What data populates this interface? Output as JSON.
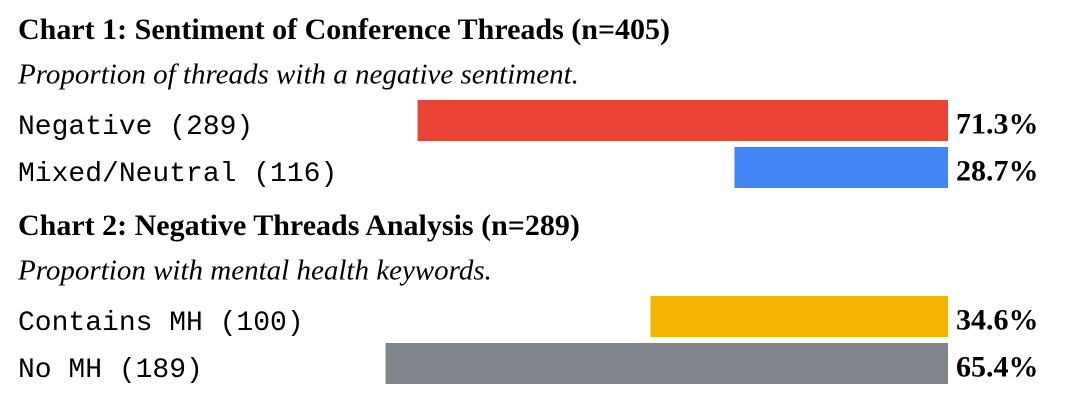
{
  "chart_data": [
    {
      "type": "bar",
      "title": "Chart 1: Sentiment of Conference Threads (n=405)",
      "subtitle": "Proportion of threads with a negative sentiment.",
      "categories": [
        "Negative (289)",
        "Mixed/Neutral (116)"
      ],
      "series": [
        {
          "colors": [
            "#ea4335",
            "#4285f4"
          ],
          "values": [
            71.3,
            28.7
          ],
          "value_labels": [
            "71.3%",
            "28.7%"
          ]
        }
      ]
    },
    {
      "type": "bar",
      "title": "Chart 2: Negative Threads Analysis (n=289)",
      "subtitle": "Proportion with mental health keywords.",
      "categories": [
        "Contains MH (100)",
        "No MH (189)"
      ],
      "series": [
        {
          "colors": [
            "#f4b400",
            "#80868b"
          ],
          "values": [
            34.6,
            65.4
          ],
          "value_labels": [
            "34.6%",
            "65.4%"
          ]
        }
      ]
    }
  ]
}
